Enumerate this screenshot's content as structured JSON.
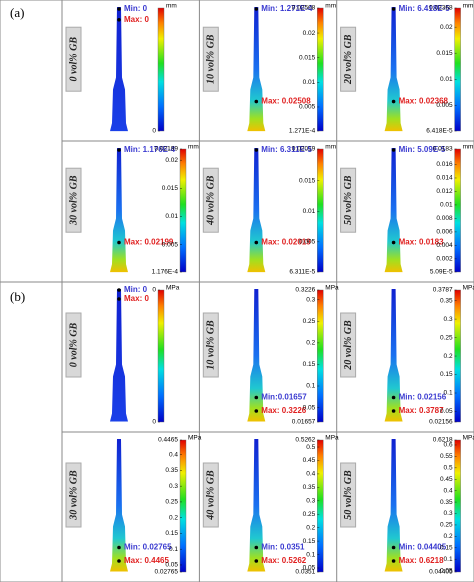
{
  "figure": {
    "parts": [
      {
        "label": "(a)",
        "unit": "mm",
        "panels": [
          {
            "sample": "0 vol% GB",
            "min": "Min: 0",
            "max": "Max: 0",
            "scale": [
              "0"
            ]
          },
          {
            "sample": "10 vol% GB",
            "min": "Min: 1.271E-4",
            "max": "Max: 0.02508",
            "scale": [
              "0.02508",
              "0.02",
              "0.015",
              "0.01",
              "0.005",
              "1.271E-4"
            ]
          },
          {
            "sample": "20 vol% GB",
            "min": "Min: 6.418E-5",
            "max": "Max: 0.02368",
            "scale": [
              "0.02368",
              "0.02",
              "0.015",
              "0.01",
              "0.005",
              "6.418E-5"
            ]
          },
          {
            "sample": "30 vol% GB",
            "min": "Min: 1.176E-4",
            "max": "Max: 0.02199",
            "scale": [
              "0.02199",
              "0.02",
              "0.015",
              "0.01",
              "0.005",
              "1.176E-4"
            ]
          },
          {
            "sample": "40 vol% GB",
            "min": "Min: 6.311E-5",
            "max": "Max: 0.02019",
            "scale": [
              "0.02019",
              "0.015",
              "0.01",
              "0.005",
              "6.311E-5"
            ]
          },
          {
            "sample": "50 vol% GB",
            "min": "Min: 5.09E-5",
            "max": "Max: 0.0183",
            "scale": [
              "0.0183",
              "0.016",
              "0.014",
              "0.012",
              "0.01",
              "0.008",
              "0.006",
              "0.004",
              "0.002",
              "5.09E-5"
            ]
          }
        ]
      },
      {
        "label": "(b)",
        "unit": "MPa",
        "panels": [
          {
            "sample": "0 vol% GB",
            "min": "Min: 0",
            "max": "Max: 0",
            "scale": [
              "0",
              "0"
            ]
          },
          {
            "sample": "10 vol% GB",
            "min": "Min:0.01657",
            "max": "Max: 0.3226",
            "scale": [
              "0.3226",
              "0.3",
              "0.25",
              "0.2",
              "0.15",
              "0.1",
              "0.05",
              "0.01657"
            ]
          },
          {
            "sample": "20 vol% GB",
            "min": "Min: 0.02156",
            "max": "Max: 0.3787",
            "scale": [
              "0.3787",
              "0.35",
              "0.3",
              "0.25",
              "0.2",
              "0.15",
              "0.1",
              "0.05",
              "0.02156"
            ]
          },
          {
            "sample": "30 vol% GB",
            "min": "Min: 0.02765",
            "max": "Max: 0.4465",
            "scale": [
              "0.4465",
              "0.4",
              "0.35",
              "0.3",
              "0.25",
              "0.2",
              "0.15",
              "0.1",
              "0.05",
              "0.02765"
            ]
          },
          {
            "sample": "40 vol% GB",
            "min": "Min: 0.0351",
            "max": "Max: 0.5262",
            "scale": [
              "0.5262",
              "0.5",
              "0.45",
              "0.4",
              "0.35",
              "0.3",
              "0.25",
              "0.2",
              "0.15",
              "0.1",
              "0.05",
              "0.0351"
            ]
          },
          {
            "sample": "50 vol% GB",
            "min": "Min: 0.04405",
            "max": "Max: 0.6218",
            "scale": [
              "0.6218",
              "0.6",
              "0.55",
              "0.5",
              "0.45",
              "0.4",
              "0.35",
              "0.3",
              "0.25",
              "0.2",
              "0.15",
              "0.1",
              "0.05",
              "0.04405"
            ]
          }
        ]
      }
    ]
  }
}
